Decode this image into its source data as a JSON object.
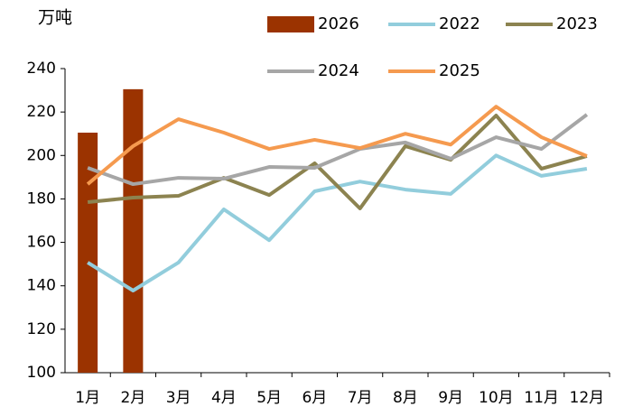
{
  "chart_data": {
    "type": "bar",
    "y_label": "万吨",
    "categories": [
      "1月",
      "2月",
      "3月",
      "4月",
      "5月",
      "6月",
      "7月",
      "8月",
      "9月",
      "10月",
      "11月",
      "12月"
    ],
    "ylim": [
      100,
      240
    ],
    "yticks": [
      100,
      120,
      140,
      160,
      180,
      200,
      220,
      240
    ],
    "grid": false,
    "series": [
      {
        "name": "2026",
        "type": "bar",
        "color": "#9b3300",
        "values": [
          210.5,
          230.5,
          null,
          null,
          null,
          null,
          null,
          null,
          null,
          null,
          null,
          null
        ]
      },
      {
        "name": "2022",
        "type": "line",
        "color": "#92cddc",
        "values": [
          150.7,
          137.8,
          150.7,
          175.2,
          161,
          183.5,
          188,
          184.3,
          182.3,
          200,
          190.6,
          193.9
        ]
      },
      {
        "name": "2023",
        "type": "line",
        "color": "#8c8350",
        "values": [
          178.5,
          180.6,
          181.4,
          189.7,
          181.8,
          196.4,
          175.6,
          204.3,
          198,
          218.4,
          193.9,
          199.7
        ]
      },
      {
        "name": "2024",
        "type": "line",
        "color": "#a6a6a6",
        "values": [
          194.3,
          186.8,
          189.7,
          189.3,
          194.7,
          194.3,
          203,
          206,
          198.5,
          208.4,
          203,
          218.8
        ]
      },
      {
        "name": "2025",
        "type": "line",
        "color": "#f59a4f",
        "values": [
          186.8,
          204.3,
          216.7,
          210.5,
          203,
          207.2,
          203.4,
          210,
          205,
          222.5,
          208.4,
          199.7
        ]
      }
    ]
  }
}
